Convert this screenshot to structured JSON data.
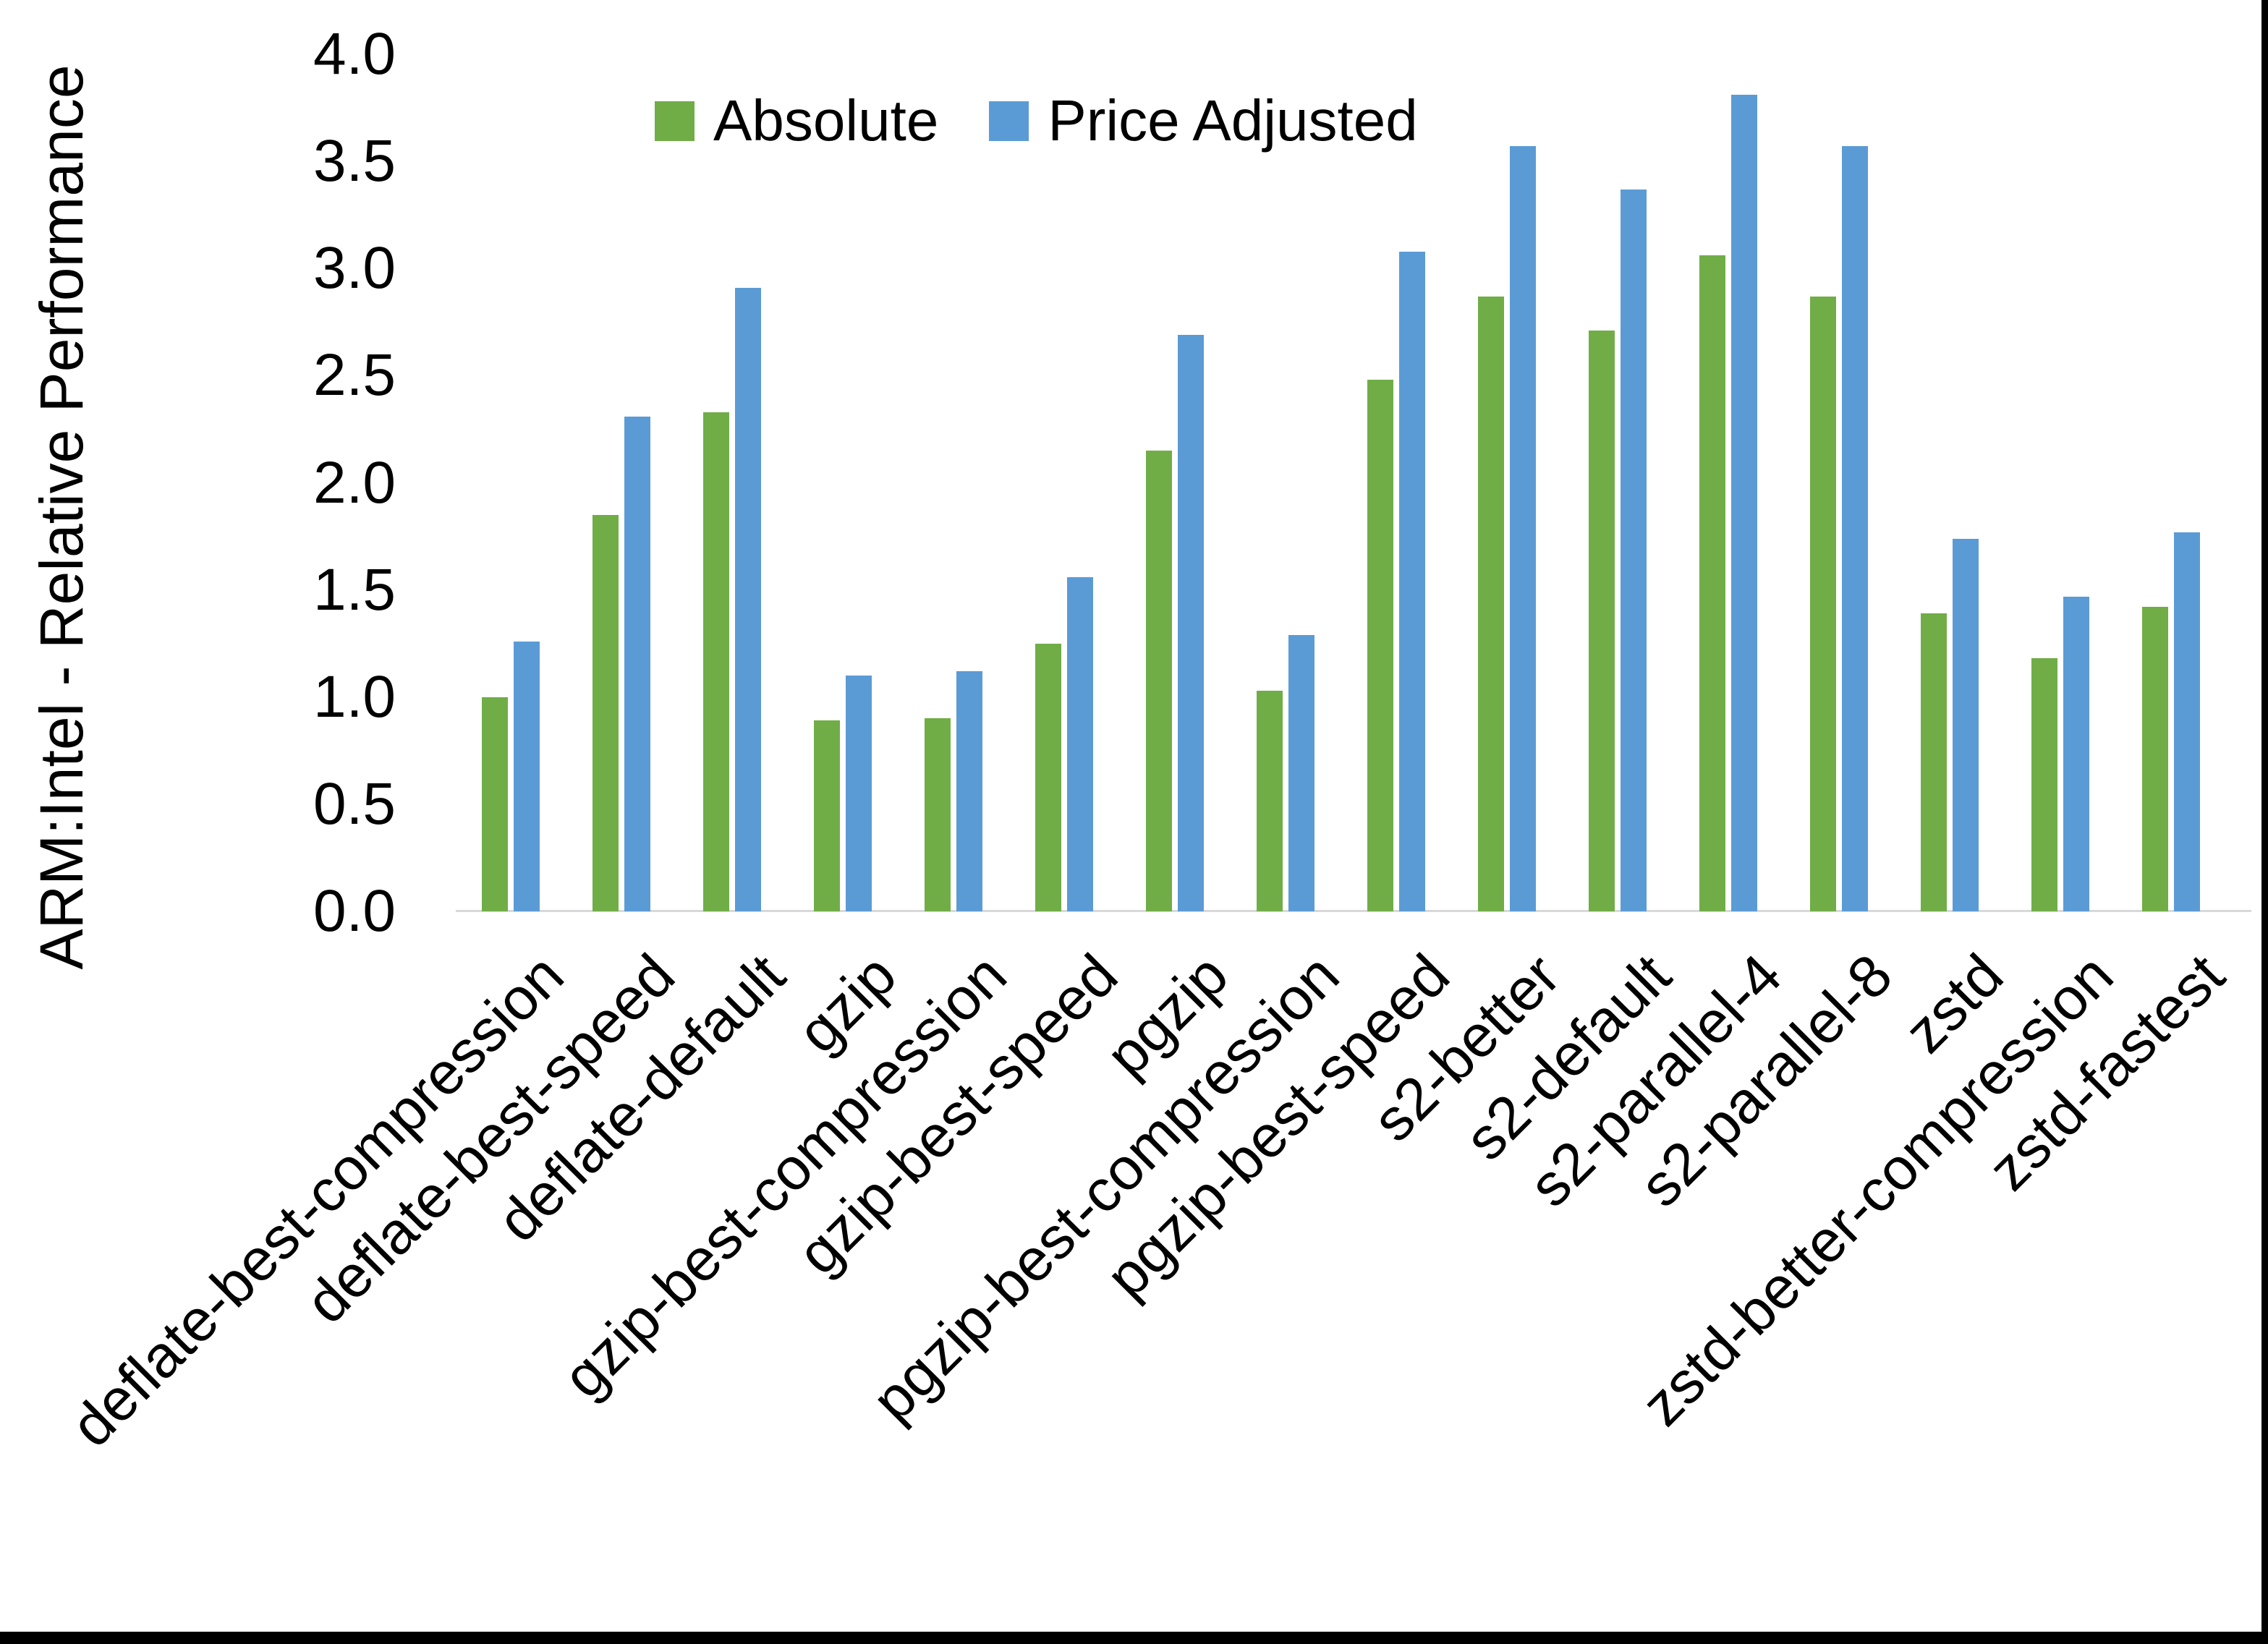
{
  "chart_data": {
    "type": "bar",
    "title": "",
    "xlabel": "",
    "ylabel": "ARM:Intel - Relative Performance",
    "ylim": [
      0.0,
      4.0
    ],
    "y_ticks": [
      0.0,
      0.5,
      1.0,
      1.5,
      2.0,
      2.5,
      3.0,
      3.5,
      4.0
    ],
    "grid": false,
    "legend_position": "top-center",
    "categories": [
      "deflate-best-compression",
      "deflate-best-speed",
      "deflate-default",
      "gzip",
      "gzip-best-compression",
      "gzip-best-speed",
      "pgzip",
      "pgzip-best-compression",
      "pgzip-best-speed",
      "s2-better",
      "s2-default",
      "s2-parallel-4",
      "s2-parallel-8",
      "zstd",
      "zstd-better-compression",
      "zstd-fastest"
    ],
    "series": [
      {
        "name": "Absolute",
        "color": "#70AD47",
        "values": [
          1.0,
          1.85,
          2.33,
          0.89,
          0.9,
          1.25,
          2.15,
          1.03,
          2.48,
          2.87,
          2.71,
          3.06,
          2.87,
          1.39,
          1.18,
          1.42
        ]
      },
      {
        "name": "Price Adjusted",
        "color": "#5B9BD5",
        "values": [
          1.26,
          2.31,
          2.91,
          1.1,
          1.12,
          1.56,
          2.69,
          1.29,
          3.08,
          3.57,
          3.37,
          3.81,
          3.57,
          1.74,
          1.47,
          1.77
        ]
      }
    ]
  },
  "legend": {
    "items": [
      {
        "label": "Absolute",
        "color": "#70AD47"
      },
      {
        "label": "Price Adjusted",
        "color": "#5B9BD5"
      }
    ]
  },
  "axis": {
    "y_title": "ARM:Intel - Relative Performance",
    "line_color": "#d9d9d9",
    "text_color": "#000000"
  },
  "frame": {
    "right_bar_color": "#000000",
    "bottom_bar_color": "#000000"
  }
}
